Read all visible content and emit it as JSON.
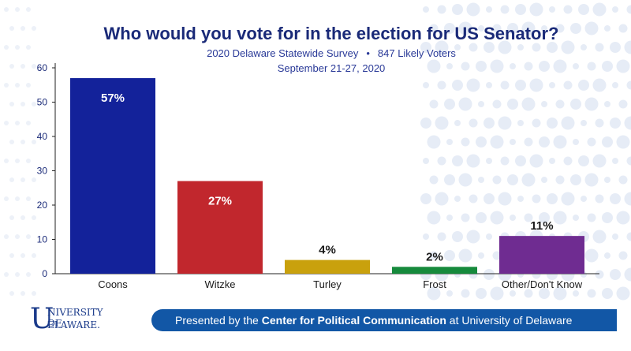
{
  "header": {
    "title": "Who would you vote for in the election for US Senator?",
    "subtitle_survey": "2020 Delaware Statewide Survey",
    "subtitle_bullet": "•",
    "subtitle_voters": "847 Likely Voters",
    "dates": "September 21-27, 2020"
  },
  "footer": {
    "prefix": "Presented by the ",
    "center": "Center for Political Communication",
    "suffix": " at University of Delaware"
  },
  "logo": {
    "big_letter": "U",
    "line1": "NIVERSITY OF",
    "line2": "ELAWARE."
  },
  "chart_data": {
    "type": "bar",
    "categories": [
      "Coons",
      "Witzke",
      "Turley",
      "Frost",
      "Other/Don't Know"
    ],
    "values": [
      57,
      27,
      4,
      2,
      11
    ],
    "data_labels": [
      "57%",
      "27%",
      "4%",
      "2%",
      "11%"
    ],
    "colors": [
      "#13229a",
      "#c1272d",
      "#c9a10d",
      "#168a3c",
      "#6f2c91"
    ],
    "yticks": [
      0,
      10,
      20,
      30,
      40,
      50,
      60
    ],
    "ylim": [
      0,
      60
    ],
    "xlabel": "",
    "ylabel": "",
    "grid": false,
    "label_inside": [
      true,
      true,
      false,
      false,
      false
    ]
  }
}
